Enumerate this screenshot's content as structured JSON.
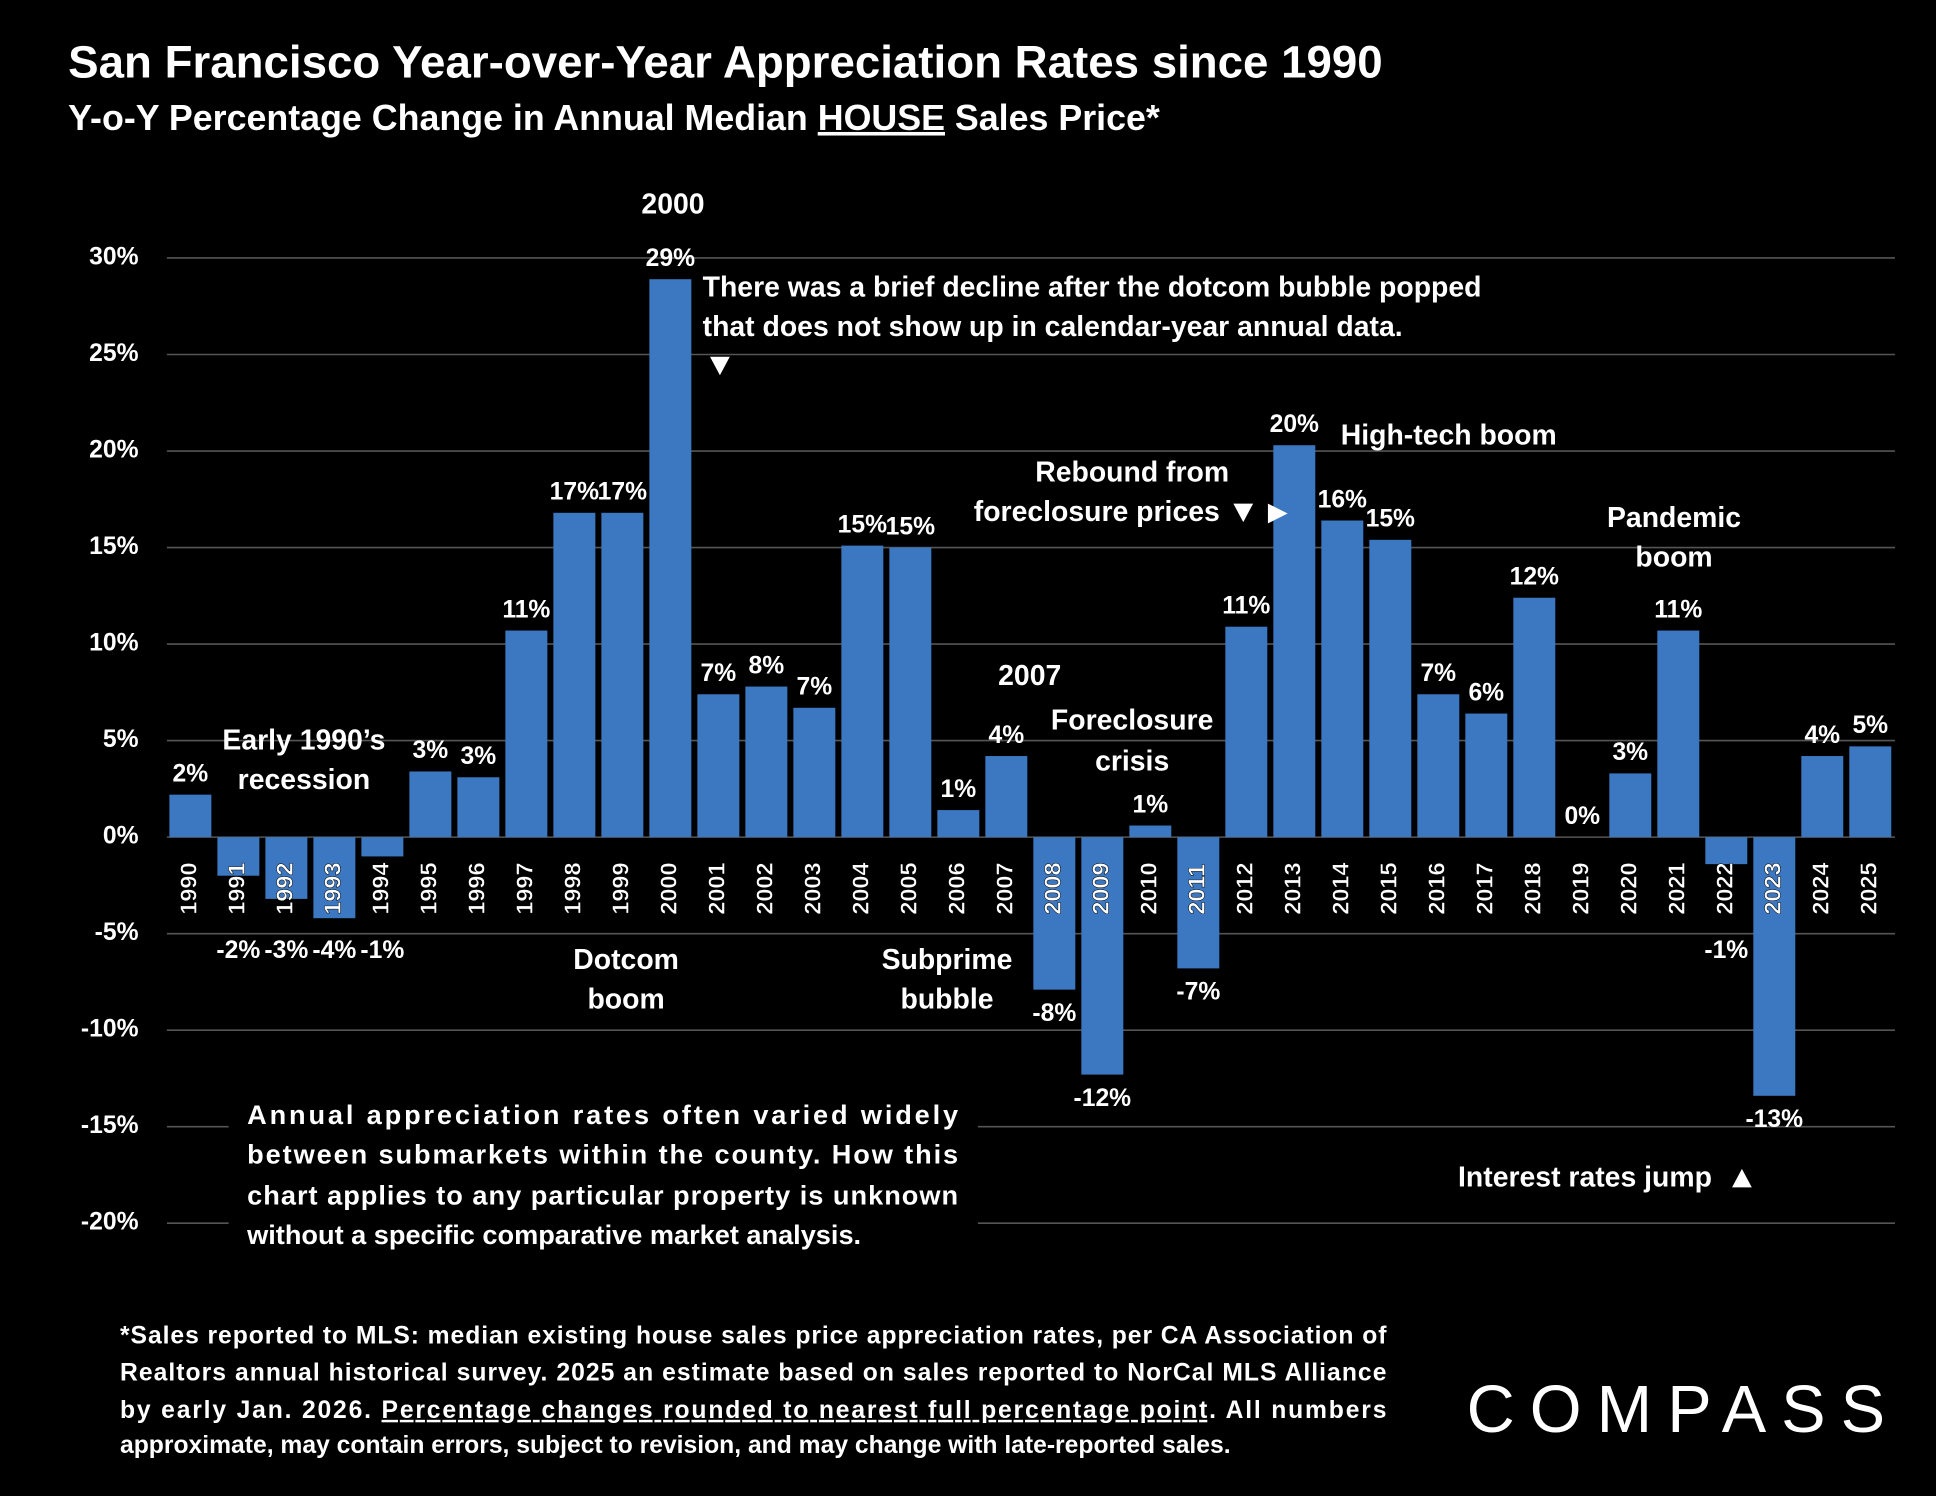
{
  "chart_data": {
    "type": "bar",
    "title": "San Francisco Year-over-Year Appreciation Rates since 1990",
    "subtitle": [
      "Y-o-Y Percentage Change in Annual Median ",
      "HOUSE",
      " Sales Price*"
    ],
    "categories": [
      "1990",
      "1991",
      "1992",
      "1993",
      "1994",
      "1995",
      "1996",
      "1997",
      "1998",
      "1999",
      "2000",
      "2001",
      "2002",
      "2003",
      "2004",
      "2005",
      "2006",
      "2007",
      "2008",
      "2009",
      "2010",
      "2011",
      "2012",
      "2013",
      "2014",
      "2015",
      "2016",
      "2017",
      "2018",
      "2019",
      "2020",
      "2021",
      "2022",
      "2023",
      "2024",
      "2025"
    ],
    "values": [
      2.2,
      -2.0,
      -3.2,
      -4.2,
      -1.0,
      3.4,
      3.1,
      10.7,
      16.8,
      16.8,
      28.9,
      7.4,
      7.8,
      6.7,
      15.1,
      15.0,
      1.4,
      4.2,
      -7.9,
      -12.3,
      0.6,
      -6.8,
      10.9,
      20.3,
      16.4,
      15.4,
      7.4,
      6.4,
      12.4,
      0,
      3.3,
      10.7,
      -1.4,
      -13.4,
      4.2,
      4.7
    ],
    "value_labels": [
      "2%",
      "-2%",
      "-3%",
      "-4%",
      "-1%",
      "3%",
      "3%",
      "11%",
      "17%",
      "17%",
      "29%",
      "7%",
      "8%",
      "7%",
      "15%",
      "15%",
      "1%",
      "4%",
      "-8%",
      "-12%",
      "1%",
      "-7%",
      "11%",
      "20%",
      "16%",
      "15%",
      "7%",
      "6%",
      "12%",
      "0%",
      "3%",
      "11%",
      "-1%",
      "-13%",
      "4%",
      "5%"
    ],
    "color": "#3b78c1",
    "ylim": [
      -20,
      30
    ],
    "yticks": [
      {
        "value": -20,
        "label": "-20%"
      },
      {
        "value": -15,
        "label": "-15%"
      },
      {
        "value": -10,
        "label": "-10%"
      },
      {
        "value": -5,
        "label": "-5%"
      },
      {
        "value": 0,
        "label": "0%"
      },
      {
        "value": 5,
        "label": "5%"
      },
      {
        "value": 10,
        "label": "10%"
      },
      {
        "value": 15,
        "label": "15%"
      },
      {
        "value": 20,
        "label": "20%"
      },
      {
        "value": 25,
        "label": "25%"
      },
      {
        "value": 30,
        "label": "30%"
      }
    ],
    "grid": true,
    "annotations": [
      {
        "lines": [
          "2000"
        ]
      },
      {
        "lines": [
          "There was a brief decline after the dotcom bubble popped",
          "that does not show up in calendar-year annual data."
        ]
      },
      {
        "lines": [
          "Early 1990’s",
          "recession"
        ]
      },
      {
        "lines": [
          "Dotcom",
          "boom"
        ]
      },
      {
        "lines": [
          "Subprime",
          "bubble"
        ]
      },
      {
        "lines": [
          "2007"
        ]
      },
      {
        "lines": [
          "Foreclosure",
          "crisis"
        ]
      },
      {
        "lines": [
          "Rebound from",
          "foreclosure  prices"
        ]
      },
      {
        "lines": [
          "High-tech boom"
        ]
      },
      {
        "lines": [
          "Pandemic",
          "boom"
        ]
      },
      {
        "lines": [
          "Interest rates jump"
        ]
      }
    ]
  },
  "note": [
    "Annual appreciation rates often varied widely",
    "between submarkets within the county. How this",
    "chart applies to any particular property is unknown",
    "without a specific comparative market analysis."
  ],
  "footnote": [
    [
      "*Sales reported to MLS: median existing house sales price appreciation rates, per CA Association of"
    ],
    [
      "Realtors annual historical survey. 2025 an estimate based on sales reported to NorCal MLS Alliance"
    ],
    [
      "by early Jan. 2026. ",
      "Percentage changes rounded to nearest full percentage point",
      ". All numbers"
    ],
    [
      "approximate, may contain errors, subject to revision, and may change with late-reported sales."
    ]
  ],
  "logo": "COMPASS"
}
